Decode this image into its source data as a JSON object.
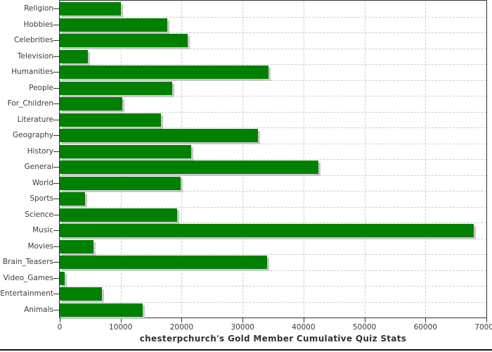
{
  "chart_data": {
    "type": "bar",
    "orientation": "horizontal",
    "title": "chesterpchurch's Gold Member Cumulative Quiz Stats",
    "categories": [
      "Religion",
      "Hobbies",
      "Celebrities",
      "Television",
      "Humanities",
      "People",
      "For_Children",
      "Literature",
      "Geography",
      "History",
      "General",
      "World",
      "Sports",
      "Science",
      "Music",
      "Movies",
      "Brain_Teasers",
      "Video_Games",
      "Entertainment",
      "Animals"
    ],
    "values": [
      10000,
      17600,
      21000,
      4600,
      34200,
      18400,
      10300,
      16600,
      32500,
      21600,
      42400,
      19800,
      4200,
      19300,
      67900,
      5500,
      34000,
      800,
      6900,
      13600
    ],
    "xlabel": "",
    "ylabel": "",
    "xlim": [
      0,
      70000
    ],
    "x_ticks": [
      0,
      10000,
      20000,
      30000,
      40000,
      50000,
      60000,
      70000
    ],
    "grid": true,
    "legend": "none",
    "title_position": "bottom",
    "colors": {
      "bar": "#008000",
      "bar_shadow": "#c8c8c8",
      "gridline": "#cccccc",
      "axis": "#333333",
      "tick_text": "#3c3c3c",
      "title_text": "#333333",
      "background": "#ffffff"
    }
  }
}
